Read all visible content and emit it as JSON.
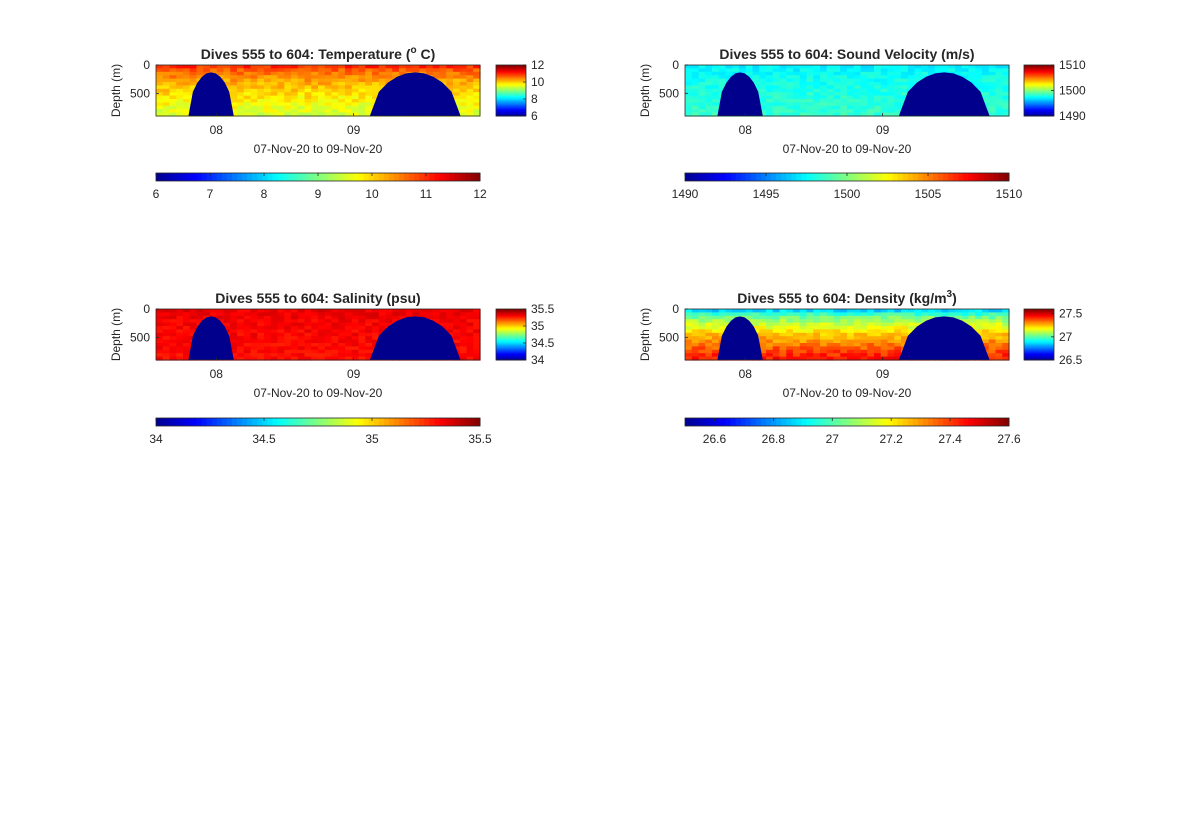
{
  "colors": {
    "jet": [
      "#00008f",
      "#0000ff",
      "#0080ff",
      "#00ffff",
      "#80ff80",
      "#ffff00",
      "#ff8000",
      "#ff0000",
      "#800000"
    ],
    "mask": "#00008c",
    "axes": "#262626",
    "background": "#ffffff"
  },
  "chart_data": [
    {
      "type": "heatmap",
      "title": "Dives 555 to 604: Temperature (",
      "title_sup": "o",
      "title_suffix": " C)",
      "ylabel": "Depth (m)",
      "xlabel": "07-Nov-20 to 09-Nov-20",
      "x_tick_labels": [
        "08",
        "09"
      ],
      "y_tick_labels": [
        "0",
        "500"
      ],
      "colorbar_ticks": [
        "12",
        "10",
        "8",
        "6"
      ],
      "colorbar_range": [
        6,
        12
      ],
      "colorbar_h_ticks": [
        "6",
        "7",
        "8",
        "9",
        "10",
        "11",
        "12"
      ],
      "depth_range": [
        0,
        900
      ],
      "surface": 11.3,
      "bottom": 9.5,
      "noise": 0.25,
      "no_data_regions": [
        {
          "time_range": [
            0.1,
            0.24
          ],
          "depth_top": 130
        },
        {
          "time_range": [
            0.66,
            0.94
          ],
          "depth_top": 130
        }
      ]
    },
    {
      "type": "heatmap",
      "title": "Dives 555 to 604: Sound Velocity (m/s)",
      "ylabel": "Depth (m)",
      "xlabel": "07-Nov-20 to 09-Nov-20",
      "x_tick_labels": [
        "08",
        "09"
      ],
      "y_tick_labels": [
        "0",
        "500"
      ],
      "colorbar_ticks": [
        "1510",
        "1500",
        "1490"
      ],
      "colorbar_range": [
        1490,
        1510
      ],
      "colorbar_h_ticks": [
        "1490",
        "1495",
        "1500",
        "1505",
        "1510"
      ],
      "depth_range": [
        0,
        900
      ],
      "surface": 1497.0,
      "bottom": 1498.5,
      "noise": 0.6,
      "no_data_regions": [
        {
          "time_range": [
            0.1,
            0.24
          ],
          "depth_top": 130
        },
        {
          "time_range": [
            0.66,
            0.94
          ],
          "depth_top": 130
        }
      ]
    },
    {
      "type": "heatmap",
      "title": "Dives 555 to 604: Salinity (psu)",
      "ylabel": "Depth (m)",
      "xlabel": "07-Nov-20 to 09-Nov-20",
      "x_tick_labels": [
        "08",
        "09"
      ],
      "y_tick_labels": [
        "0",
        "500"
      ],
      "colorbar_ticks": [
        "35.5",
        "35",
        "34.5",
        "34"
      ],
      "colorbar_range": [
        34,
        35.5
      ],
      "colorbar_h_ticks": [
        "34",
        "34.5",
        "35",
        "35.5"
      ],
      "colorbar_h_values": [
        34,
        34.5,
        35,
        35.5
      ],
      "depth_range": [
        0,
        900
      ],
      "surface": 35.35,
      "bottom": 35.3,
      "noise": 0.04,
      "no_data_regions": [
        {
          "time_range": [
            0.1,
            0.24
          ],
          "depth_top": 130
        },
        {
          "time_range": [
            0.66,
            0.94
          ],
          "depth_top": 130
        }
      ]
    },
    {
      "type": "heatmap",
      "title": "Dives 555 to 604: Density (kg/m",
      "title_sup": "3",
      "title_suffix": ")",
      "ylabel": "Depth (m)",
      "xlabel": "07-Nov-20 to 09-Nov-20",
      "x_tick_labels": [
        "08",
        "09"
      ],
      "y_tick_labels": [
        "0",
        "500"
      ],
      "colorbar_ticks": [
        "27.5",
        "27",
        "26.5"
      ],
      "colorbar_tick_values": [
        27.5,
        27,
        26.5
      ],
      "colorbar_range": [
        26.5,
        27.6
      ],
      "colorbar_h_ticks": [
        "26.6",
        "26.8",
        "27",
        "27.2",
        "27.4",
        "27.6"
      ],
      "colorbar_h_range": [
        26.5,
        27.6
      ],
      "colorbar_h_values": [
        26.6,
        26.8,
        27,
        27.2,
        27.4,
        27.6
      ],
      "depth_range": [
        0,
        900
      ],
      "surface": 26.75,
      "bottom": 27.45,
      "noise": 0.05,
      "no_data_regions": [
        {
          "time_range": [
            0.1,
            0.24
          ],
          "depth_top": 130
        },
        {
          "time_range": [
            0.66,
            0.94
          ],
          "depth_top": 130
        }
      ]
    }
  ]
}
